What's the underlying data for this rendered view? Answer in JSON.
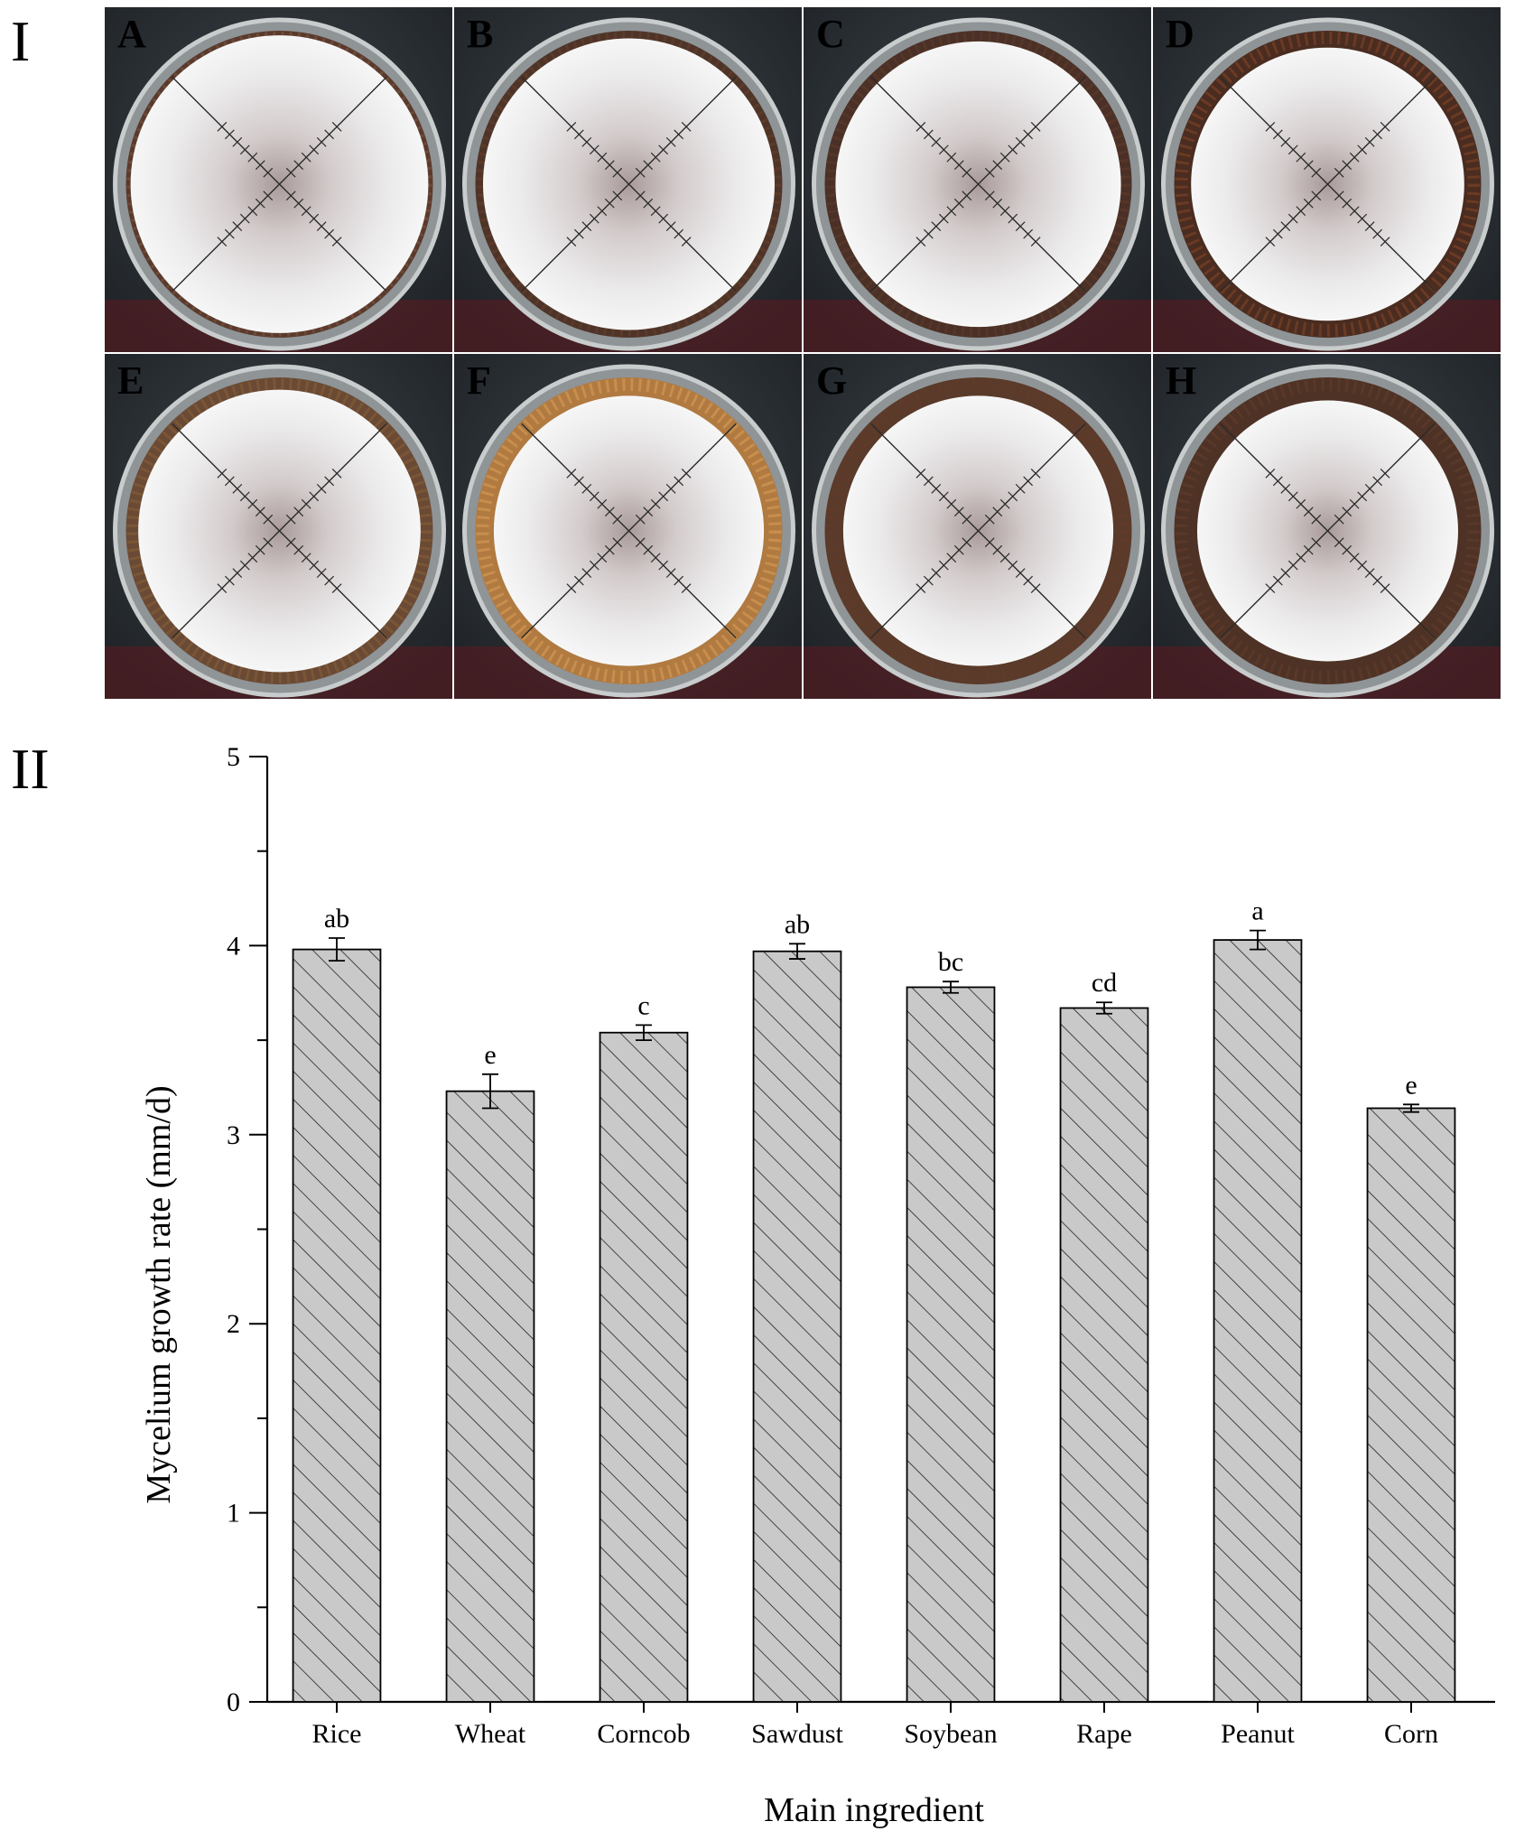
{
  "figure": {
    "panel_I_label": "I",
    "panel_II_label": "II"
  },
  "plates": [
    {
      "letter": "A",
      "agar": "#5a3a2c",
      "ring": "#6b4a38",
      "myc": 0.42
    },
    {
      "letter": "B",
      "agar": "#4e3428",
      "ring": "#5b3a2a",
      "myc": 0.4
    },
    {
      "letter": "C",
      "agar": "#4a3026",
      "ring": "#553628",
      "myc": 0.38
    },
    {
      "letter": "D",
      "agar": "#4a2c20",
      "ring": "#6a3a24",
      "myc": 0.34
    },
    {
      "letter": "E",
      "agar": "#6a4a34",
      "ring": "#7a5636",
      "myc": 0.37
    },
    {
      "letter": "F",
      "agar": "#b07a40",
      "ring": "#c88e4e",
      "myc": 0.33
    },
    {
      "letter": "G",
      "agar": "#5a3a2a",
      "ring": "#603a28",
      "myc": 0.33
    },
    {
      "letter": "H",
      "agar": "#4e3226",
      "ring": "#5a3828",
      "myc": 0.3
    }
  ],
  "chart_data": {
    "type": "bar",
    "categories": [
      "Rice",
      "Wheat",
      "Corncob",
      "Sawdust",
      "Soybean",
      "Rape",
      "Peanut",
      "Corn"
    ],
    "values": [
      3.98,
      3.23,
      3.54,
      3.97,
      3.78,
      3.67,
      4.03,
      3.14
    ],
    "errors": [
      0.06,
      0.09,
      0.04,
      0.04,
      0.03,
      0.03,
      0.05,
      0.02
    ],
    "significance": [
      "ab",
      "e",
      "c",
      "ab",
      "bc",
      "cd",
      "a",
      "e"
    ],
    "xlabel": "Main ingredient",
    "ylabel": "Mycelium growth rate (mm/d)",
    "ylim": [
      0,
      5
    ],
    "yticks": [
      "0",
      "1",
      "2",
      "3",
      "4",
      "5"
    ],
    "bar_fill": "#c9c9c9",
    "hatch": "diagonal",
    "grid": false
  }
}
